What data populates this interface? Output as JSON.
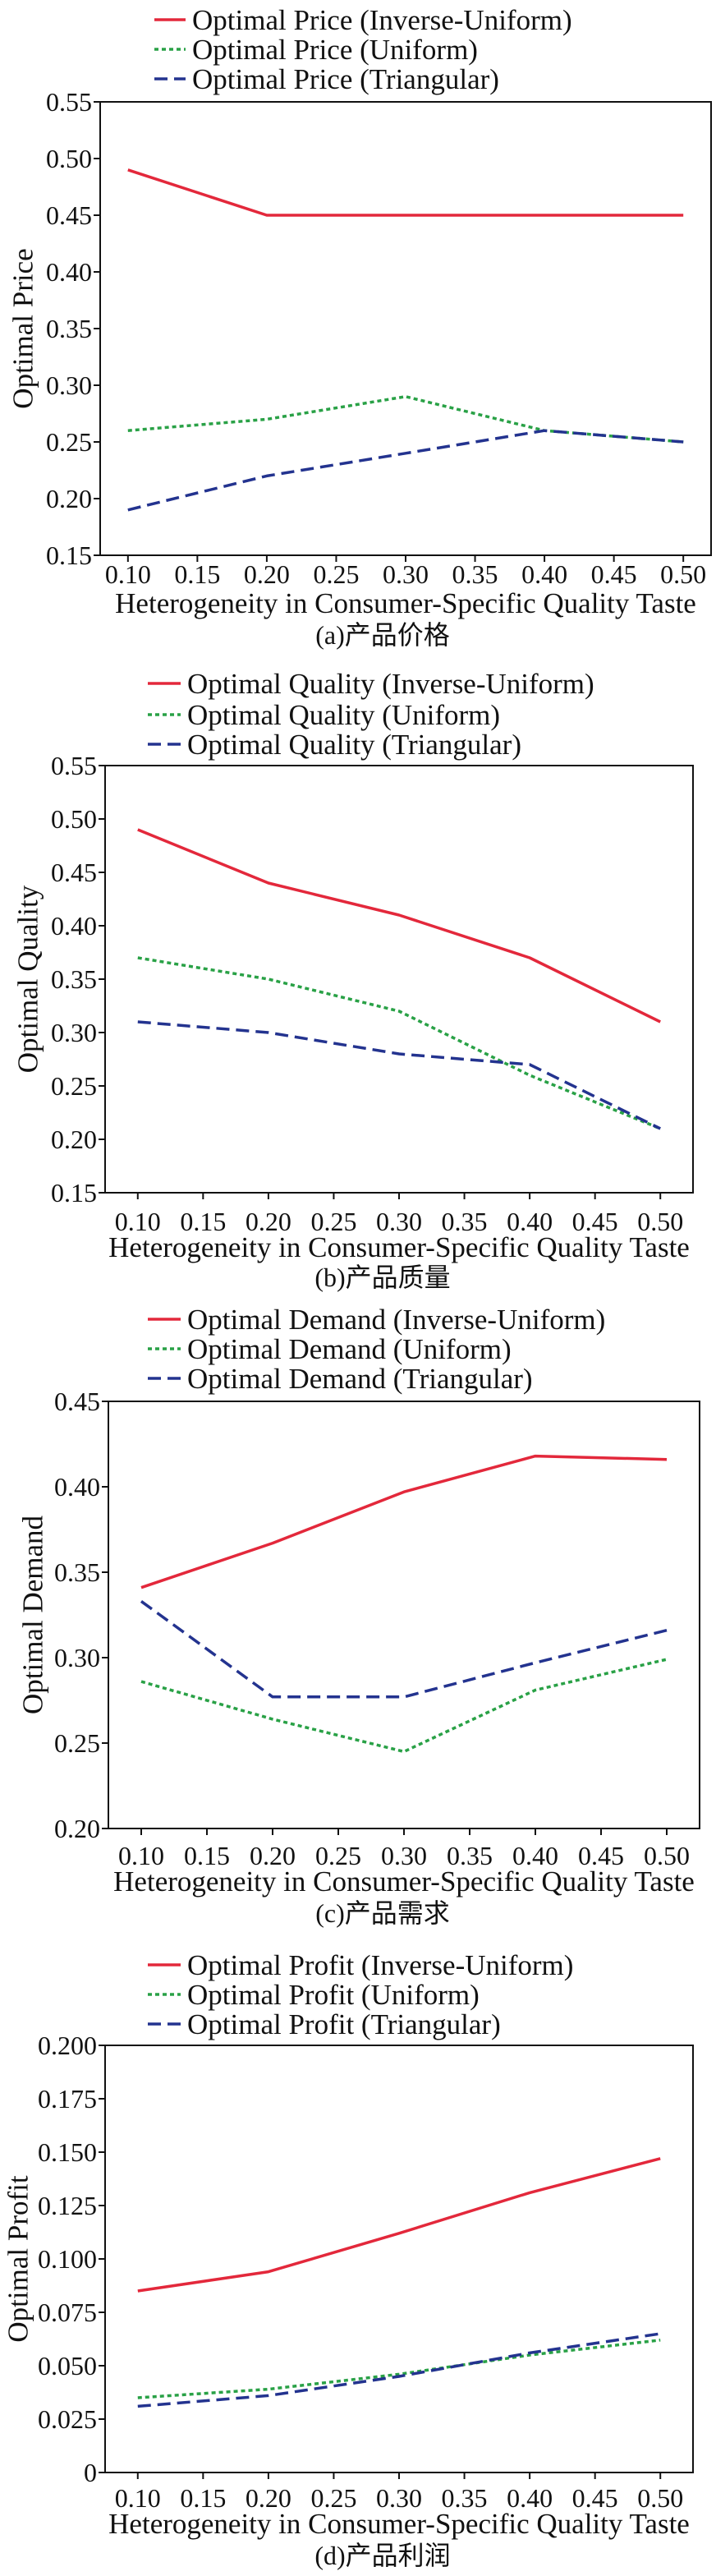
{
  "chart_data": [
    {
      "type": "line",
      "legend": "top",
      "grid": false,
      "caption": "(a)产品价格",
      "xlabel": "Heterogeneity in Consumer-Specific Quality Taste",
      "ylabel": "Optimal Price",
      "x": [
        0.1,
        0.2,
        0.3,
        0.4,
        0.5
      ],
      "xticks": [
        "0.10",
        "0.15",
        "0.20",
        "0.25",
        "0.30",
        "0.35",
        "0.40",
        "0.45",
        "0.50"
      ],
      "yticks": [
        "0.55",
        "0.50",
        "0.45",
        "0.40",
        "0.35",
        "0.30",
        "0.25",
        "0.20",
        "0.15"
      ],
      "xlim": [
        0.08,
        0.52
      ],
      "ylim": [
        0.15,
        0.55
      ],
      "series": [
        {
          "name": "Optimal Price (Inverse-Uniform)",
          "color": "#e3283b",
          "values": [
            0.49,
            0.45,
            0.45,
            0.45,
            0.45
          ]
        },
        {
          "name": "Optimal Price (Uniform)",
          "color": "#29a146",
          "values": [
            0.26,
            0.27,
            0.29,
            0.26,
            0.25
          ]
        },
        {
          "name": "Optimal Price (Triangular)",
          "color": "#23338f",
          "values": [
            0.19,
            0.22,
            0.24,
            0.26,
            0.25
          ]
        }
      ]
    },
    {
      "type": "line",
      "legend": "top",
      "grid": false,
      "caption": "(b)产品质量",
      "xlabel": "Heterogeneity in Consumer-Specific Quality Taste",
      "ylabel": "Optimal Quality",
      "x": [
        0.1,
        0.2,
        0.3,
        0.4,
        0.5
      ],
      "xticks": [
        "0.10",
        "0.15",
        "0.20",
        "0.25",
        "0.30",
        "0.35",
        "0.40",
        "0.45",
        "0.50"
      ],
      "yticks": [
        "0.55",
        "0.50",
        "0.45",
        "0.40",
        "0.35",
        "0.30",
        "0.25",
        "0.20",
        "0.15"
      ],
      "xlim": [
        0.075,
        0.525
      ],
      "ylim": [
        0.15,
        0.55
      ],
      "series": [
        {
          "name": "Optimal Quality (Inverse-Uniform)",
          "color": "#e3283b",
          "values": [
            0.49,
            0.44,
            0.41,
            0.37,
            0.31
          ]
        },
        {
          "name": "Optimal Quality (Uniform)",
          "color": "#29a146",
          "values": [
            0.37,
            0.35,
            0.32,
            0.26,
            0.21
          ]
        },
        {
          "name": "Optimal Quality (Triangular)",
          "color": "#23338f",
          "values": [
            0.31,
            0.3,
            0.28,
            0.27,
            0.21
          ]
        }
      ]
    },
    {
      "type": "line",
      "legend": "top",
      "grid": false,
      "caption": "(c)产品需求",
      "xlabel": "Heterogeneity in Consumer-Specific Quality Taste",
      "ylabel": "Optimal Demand",
      "x": [
        0.1,
        0.2,
        0.3,
        0.4,
        0.5
      ],
      "xticks": [
        "0.10",
        "0.15",
        "0.20",
        "0.25",
        "0.30",
        "0.35",
        "0.40",
        "0.45",
        "0.50"
      ],
      "yticks": [
        "0.45",
        "0.40",
        "0.35",
        "0.30",
        "0.25",
        "0.20"
      ],
      "xlim": [
        0.075,
        0.525
      ],
      "ylim": [
        0.2,
        0.45
      ],
      "series": [
        {
          "name": "Optimal Demand (Inverse-Uniform)",
          "color": "#e3283b",
          "values": [
            0.341,
            0.367,
            0.397,
            0.418,
            0.416
          ]
        },
        {
          "name": "Optimal Demand (Uniform)",
          "color": "#29a146",
          "values": [
            0.286,
            0.264,
            0.245,
            0.281,
            0.299
          ]
        },
        {
          "name": "Optimal Demand (Triangular)",
          "color": "#23338f",
          "values": [
            0.333,
            0.277,
            0.277,
            0.297,
            0.316
          ]
        }
      ]
    },
    {
      "type": "line",
      "legend": "top",
      "grid": false,
      "caption": "(d)产品利润",
      "xlabel": "Heterogeneity in Consumer-Specific Quality Taste",
      "ylabel": "Optimal Profit",
      "x": [
        0.1,
        0.2,
        0.3,
        0.4,
        0.5
      ],
      "xticks": [
        "0.10",
        "0.15",
        "0.20",
        "0.25",
        "0.30",
        "0.35",
        "0.40",
        "0.45",
        "0.50"
      ],
      "yticks": [
        "0.200",
        "0.175",
        "0.150",
        "0.125",
        "0.100",
        "0.075",
        "0.050",
        "0.025",
        "0"
      ],
      "xlim": [
        0.075,
        0.525
      ],
      "ylim": [
        0,
        0.2
      ],
      "series": [
        {
          "name": "Optimal Profit (Inverse-Uniform)",
          "color": "#e3283b",
          "values": [
            0.085,
            0.094,
            0.112,
            0.131,
            0.147
          ]
        },
        {
          "name": "Optimal Profit (Uniform)",
          "color": "#29a146",
          "values": [
            0.035,
            0.039,
            0.046,
            0.055,
            0.062
          ]
        },
        {
          "name": "Optimal Profit (Triangular)",
          "color": "#23338f",
          "values": [
            0.031,
            0.036,
            0.045,
            0.056,
            0.065
          ]
        }
      ]
    }
  ]
}
